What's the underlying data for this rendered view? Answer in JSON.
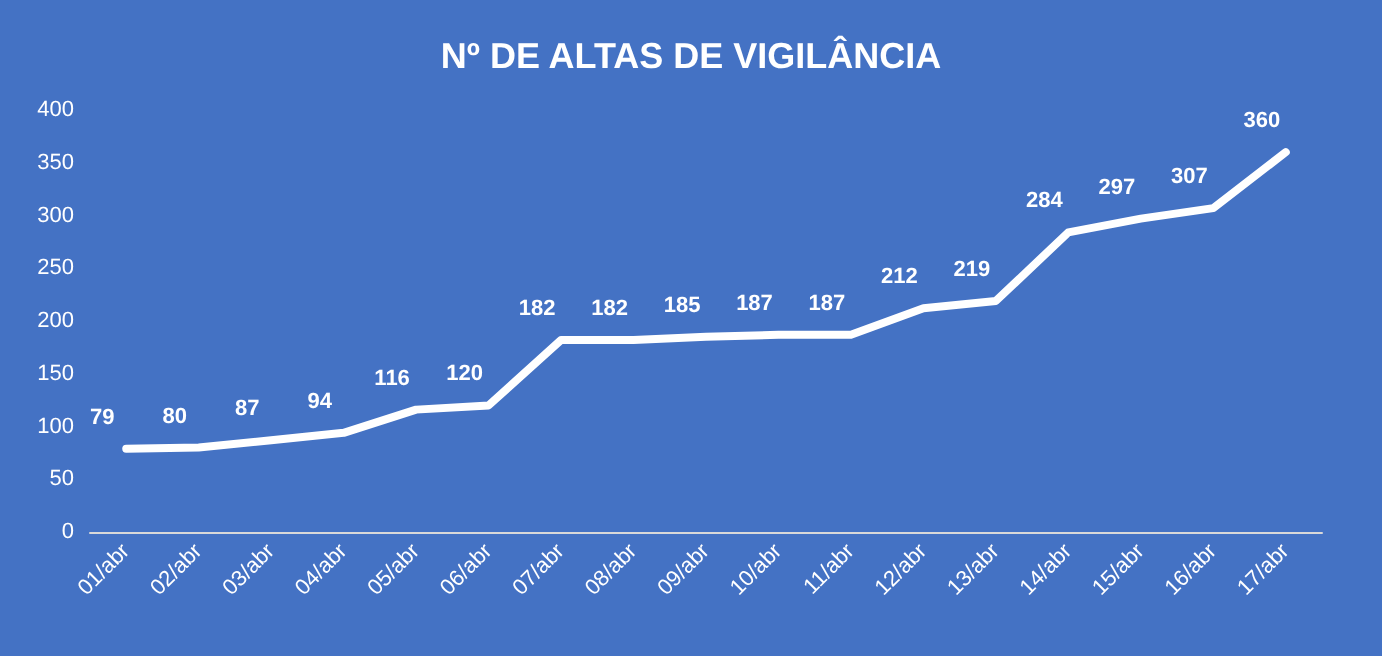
{
  "chart_data": {
    "type": "line",
    "title": "Nº DE ALTAS DE VIGILÂNCIA",
    "categories": [
      "01/abr",
      "02/abr",
      "03/abr",
      "04/abr",
      "05/abr",
      "06/abr",
      "07/abr",
      "08/abr",
      "09/abr",
      "10/abr",
      "11/abr",
      "12/abr",
      "13/abr",
      "14/abr",
      "15/abr",
      "16/abr",
      "17/abr"
    ],
    "series": [
      {
        "color": "#ffffff",
        "values": [
          79,
          80,
          87,
          94,
          116,
          120,
          182,
          182,
          185,
          187,
          187,
          212,
          219,
          284,
          297,
          307,
          360
        ]
      }
    ],
    "ylim": [
      0,
      400
    ],
    "yticks": [
      0,
      50,
      100,
      150,
      200,
      250,
      300,
      350,
      400
    ],
    "grid": false,
    "marker": "none",
    "line_style": "solid",
    "data_labels": true
  }
}
